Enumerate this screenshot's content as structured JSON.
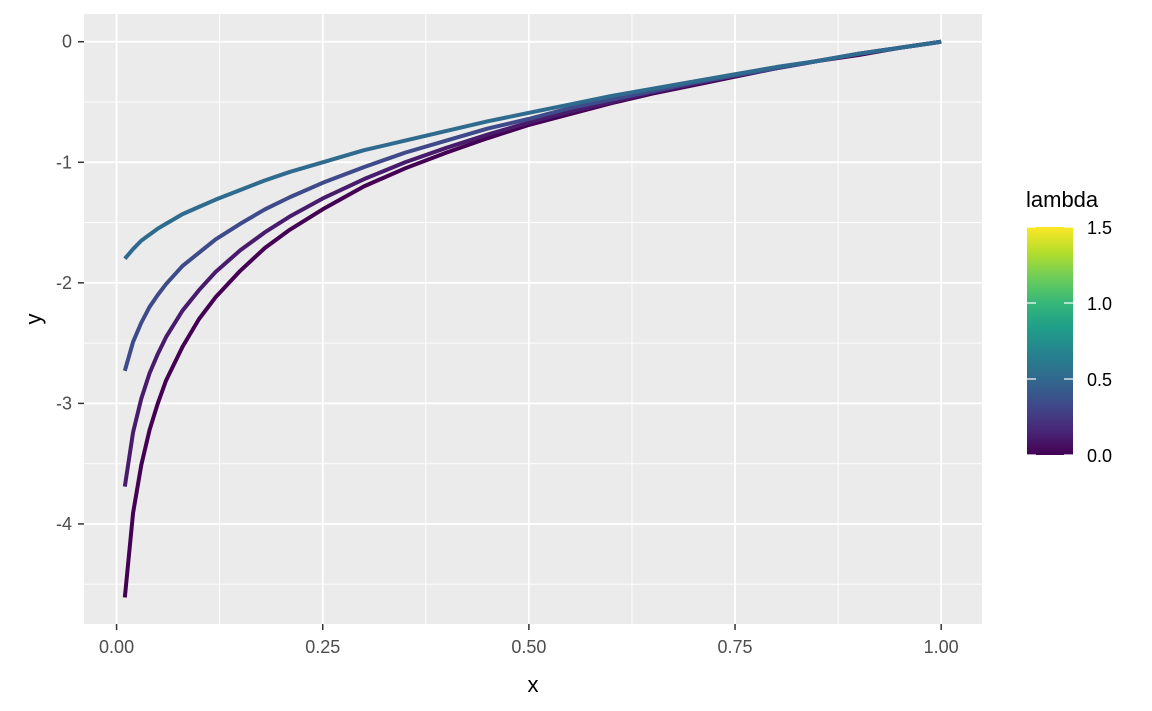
{
  "chart_data": {
    "type": "line",
    "title": "",
    "xlabel": "x",
    "ylabel": "y",
    "xlim": [
      -0.0395,
      1.0495
    ],
    "ylim": [
      -4.83,
      0.23
    ],
    "x_ticks": [
      0.0,
      0.25,
      0.5,
      0.75,
      1.0
    ],
    "x_tick_labels": [
      "0.00",
      "0.25",
      "0.50",
      "0.75",
      "1.00"
    ],
    "y_ticks": [
      0,
      -1,
      -2,
      -3,
      -4
    ],
    "y_tick_labels": [
      "0",
      "-1",
      "-2",
      "-3",
      "-4"
    ],
    "grid": true,
    "legend": {
      "title": "lambda",
      "placement": "right",
      "type": "colorbar",
      "range": [
        0.0,
        1.5
      ],
      "ticks": [
        0.0,
        0.5,
        1.0,
        1.5
      ],
      "tick_labels": [
        "0.0",
        "0.5",
        "1.0",
        "1.5"
      ],
      "colormap": "viridis",
      "stops": [
        "#440154",
        "#482878",
        "#3E4A89",
        "#31688E",
        "#26828E",
        "#1F9E89",
        "#35B779",
        "#6DCD59",
        "#B4DE2C",
        "#FDE725"
      ]
    },
    "series": [
      {
        "lambda": 0.0,
        "color": "#440154",
        "x": [
          0.01,
          0.02,
          0.03,
          0.04,
          0.05,
          0.06,
          0.08,
          0.1,
          0.12,
          0.15,
          0.18,
          0.21,
          0.25,
          0.3,
          0.35,
          0.4,
          0.45,
          0.5,
          0.55,
          0.6,
          0.65,
          0.7,
          0.75,
          0.8,
          0.85,
          0.9,
          0.95,
          1.0
        ],
        "y": [
          -4.61,
          -3.91,
          -3.51,
          -3.22,
          -3.0,
          -2.81,
          -2.53,
          -2.3,
          -2.12,
          -1.9,
          -1.71,
          -1.56,
          -1.39,
          -1.2,
          -1.05,
          -0.92,
          -0.8,
          -0.69,
          -0.6,
          -0.51,
          -0.43,
          -0.36,
          -0.29,
          -0.22,
          -0.16,
          -0.11,
          -0.05,
          0.0
        ]
      },
      {
        "lambda": 0.1,
        "color": "#481B6D",
        "x": [
          0.01,
          0.02,
          0.03,
          0.04,
          0.05,
          0.06,
          0.08,
          0.1,
          0.12,
          0.15,
          0.18,
          0.21,
          0.25,
          0.3,
          0.35,
          0.4,
          0.45,
          0.5,
          0.55,
          0.6,
          0.65,
          0.7,
          0.75,
          0.8,
          0.85,
          0.9,
          0.95,
          1.0
        ],
        "y": [
          -3.69,
          -3.24,
          -2.96,
          -2.75,
          -2.59,
          -2.45,
          -2.23,
          -2.06,
          -1.91,
          -1.73,
          -1.58,
          -1.45,
          -1.3,
          -1.14,
          -1.0,
          -0.88,
          -0.77,
          -0.67,
          -0.58,
          -0.5,
          -0.42,
          -0.35,
          -0.28,
          -0.22,
          -0.16,
          -0.1,
          -0.05,
          0.0
        ]
      },
      {
        "lambda": 0.25,
        "color": "#3E4A89",
        "x": [
          0.01,
          0.02,
          0.03,
          0.04,
          0.05,
          0.06,
          0.08,
          0.1,
          0.12,
          0.15,
          0.18,
          0.21,
          0.25,
          0.3,
          0.35,
          0.4,
          0.45,
          0.5,
          0.55,
          0.6,
          0.65,
          0.7,
          0.75,
          0.8,
          0.85,
          0.9,
          0.95,
          1.0
        ],
        "y": [
          -2.73,
          -2.49,
          -2.33,
          -2.2,
          -2.1,
          -2.01,
          -1.86,
          -1.75,
          -1.64,
          -1.51,
          -1.39,
          -1.29,
          -1.17,
          -1.04,
          -0.92,
          -0.82,
          -0.72,
          -0.64,
          -0.55,
          -0.48,
          -0.41,
          -0.34,
          -0.28,
          -0.22,
          -0.16,
          -0.1,
          -0.05,
          0.0
        ]
      },
      {
        "lambda": 0.5,
        "color": "#2F6B8E",
        "x": [
          0.01,
          0.02,
          0.03,
          0.04,
          0.05,
          0.06,
          0.08,
          0.1,
          0.12,
          0.15,
          0.18,
          0.21,
          0.25,
          0.3,
          0.35,
          0.4,
          0.45,
          0.5,
          0.55,
          0.6,
          0.65,
          0.7,
          0.75,
          0.8,
          0.85,
          0.9,
          0.95,
          1.0
        ],
        "y": [
          -1.8,
          -1.72,
          -1.65,
          -1.6,
          -1.55,
          -1.51,
          -1.43,
          -1.37,
          -1.31,
          -1.23,
          -1.15,
          -1.08,
          -1.0,
          -0.9,
          -0.82,
          -0.74,
          -0.66,
          -0.59,
          -0.52,
          -0.45,
          -0.39,
          -0.33,
          -0.27,
          -0.21,
          -0.16,
          -0.1,
          -0.05,
          0.0
        ]
      }
    ]
  }
}
